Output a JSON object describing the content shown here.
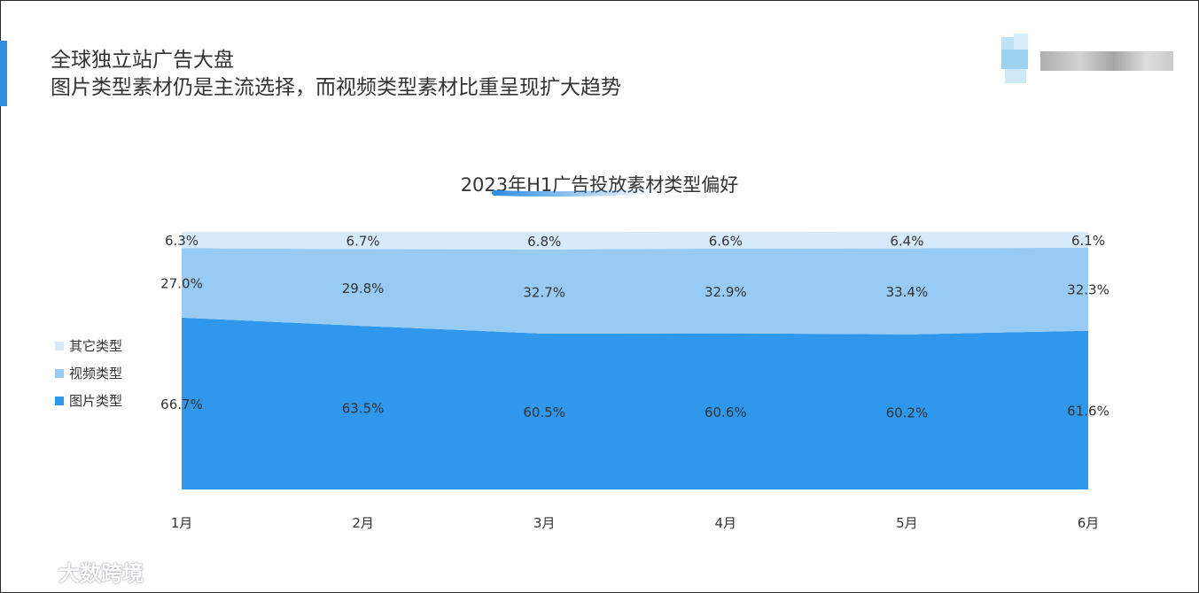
{
  "heading": {
    "line1": "全球独立站广告大盘",
    "line2": "图片类型素材仍是主流选择，而视频类型素材比重呈现扩大趋势"
  },
  "watermark": {
    "text": "大数跨境"
  },
  "icons": {
    "logo": "blurred-logo-icon",
    "watermark_logo": "watermark-logo-icon"
  },
  "chart_data": {
    "type": "area",
    "stacked": true,
    "title": "2023年H1广告投放素材类型偏好",
    "categories": [
      "1月",
      "2月",
      "3月",
      "4月",
      "5月",
      "6月"
    ],
    "ylim": [
      0,
      100
    ],
    "grid": false,
    "legend_position": "left",
    "series": [
      {
        "name": "图片类型",
        "values": [
          66.7,
          63.5,
          60.5,
          60.6,
          60.2,
          61.6
        ],
        "labels": [
          "66.7%",
          "63.5%",
          "60.5%",
          "60.6%",
          "60.2%",
          "61.6%"
        ],
        "color": "#2f97ec"
      },
      {
        "name": "视频类型",
        "values": [
          27.0,
          29.8,
          32.7,
          32.9,
          33.4,
          32.3
        ],
        "labels": [
          "27.0%",
          "29.8%",
          "32.7%",
          "32.9%",
          "33.4%",
          "32.3%"
        ],
        "color": "#97cbf4"
      },
      {
        "name": "其它类型",
        "values": [
          6.3,
          6.7,
          6.8,
          6.6,
          6.4,
          6.1
        ],
        "labels": [
          "6.3%",
          "6.7%",
          "6.8%",
          "6.6%",
          "6.4%",
          "6.1%"
        ],
        "color": "#d6eafb"
      }
    ],
    "legend_order": [
      "其它类型",
      "视频类型",
      "图片类型"
    ]
  }
}
